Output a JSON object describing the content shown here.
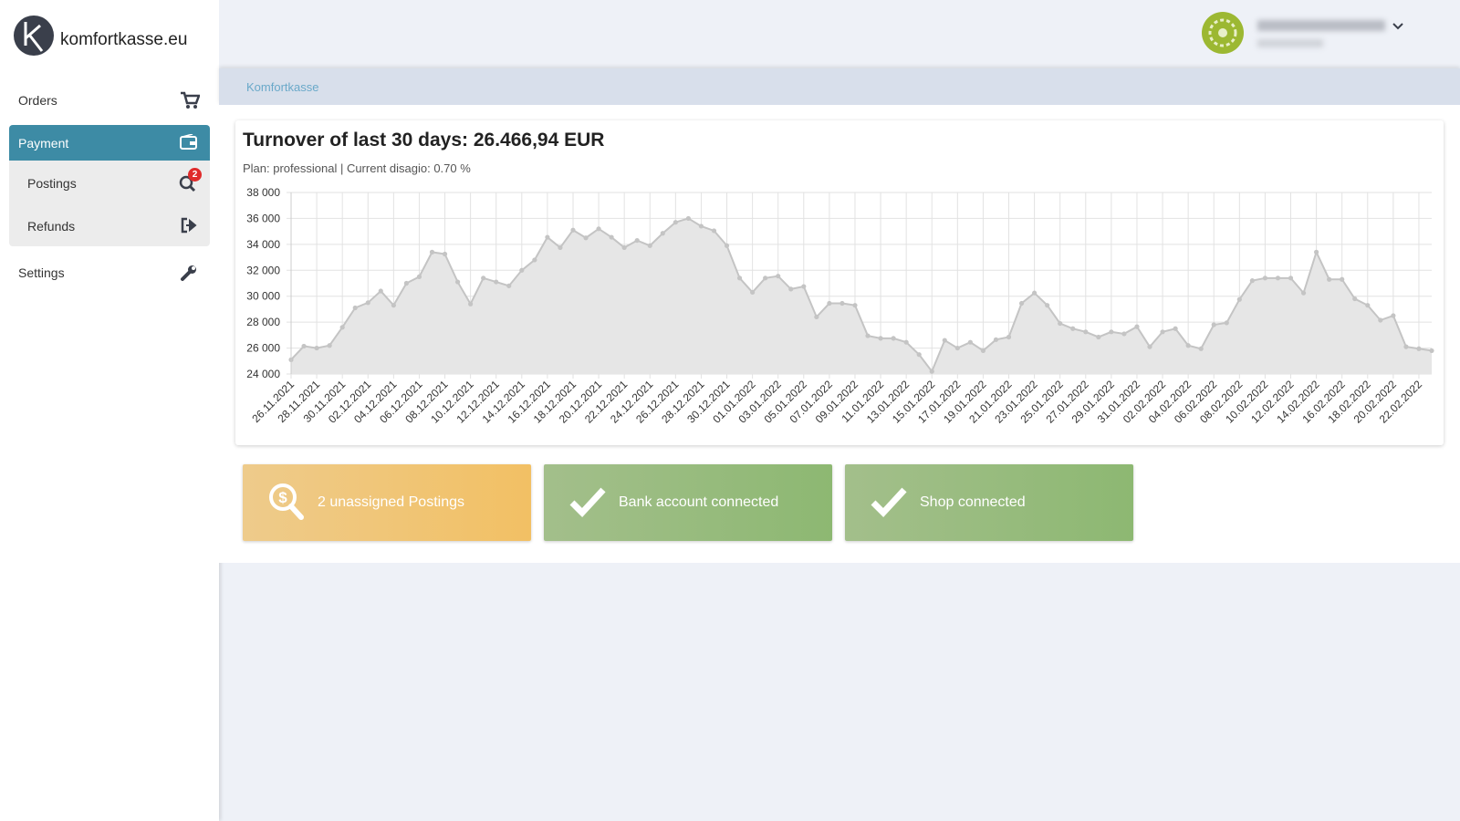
{
  "logo": "komfortkasse.eu",
  "nav": {
    "orders": "Orders",
    "payment": "Payment",
    "postings": "Postings",
    "postings_badge": 2,
    "refunds": "Refunds",
    "settings": "Settings"
  },
  "breadcrumb": "Komfortkasse",
  "tiles": [
    "2 unassigned Postings",
    "Bank account connected",
    "Shop connected"
  ],
  "chart_data": {
    "type": "line",
    "title": "Turnover of last 30 days: 26.466,94 EUR",
    "subtitle": "Plan: professional | Current disagio: 0.70 %",
    "categories": [
      "26.11.2021",
      null,
      "28.11.2021",
      null,
      "30.11.2021",
      null,
      "02.12.2021",
      null,
      "04.12.2021",
      null,
      "06.12.2021",
      null,
      "08.12.2021",
      null,
      "10.12.2021",
      null,
      "12.12.2021",
      null,
      "14.12.2021",
      null,
      "16.12.2021",
      null,
      "18.12.2021",
      null,
      "20.12.2021",
      null,
      "22.12.2021",
      null,
      "24.12.2021",
      null,
      "26.12.2021",
      null,
      "28.12.2021",
      null,
      "30.12.2021",
      null,
      "01.01.2022",
      null,
      "03.01.2022",
      null,
      "05.01.2022",
      null,
      "07.01.2022",
      null,
      "09.01.2022",
      null,
      "11.01.2022",
      null,
      "13.01.2022",
      null,
      "15.01.2022",
      null,
      "17.01.2022",
      null,
      "19.01.2022",
      null,
      "21.01.2022",
      null,
      "23.01.2022",
      null,
      "25.01.2022",
      null,
      "27.01.2022",
      null,
      "29.01.2022",
      null,
      "31.01.2022",
      null,
      "02.02.2022",
      null,
      "04.02.2022",
      null,
      "06.02.2022",
      null,
      "08.02.2022",
      null,
      "10.02.2022",
      null,
      "12.02.2022",
      null,
      "14.02.2022",
      null,
      "16.02.2022",
      null,
      "18.02.2022",
      null,
      "20.02.2022",
      null,
      "22.02.2022",
      null
    ],
    "values": [
      25100,
      26150,
      26000,
      26200,
      27600,
      29100,
      29500,
      30400,
      29300,
      31000,
      31500,
      33400,
      33250,
      31100,
      29400,
      31400,
      31100,
      30800,
      32000,
      32800,
      34550,
      33750,
      35100,
      34500,
      35200,
      34550,
      33750,
      34300,
      33900,
      34850,
      35700,
      36000,
      35400,
      35050,
      33900,
      31400,
      30300,
      31400,
      31550,
      30550,
      30750,
      28400,
      29450,
      29450,
      29300,
      26950,
      26750,
      26750,
      26450,
      25500,
      24200,
      26600,
      26000,
      26450,
      25800,
      26650,
      26850,
      29450,
      30250,
      29300,
      27900,
      27500,
      27250,
      26850,
      27250,
      27100,
      27650,
      26100,
      27250,
      27500,
      26200,
      25950,
      27800,
      27950,
      29750,
      31200,
      31400,
      31400,
      31400,
      30250,
      33400,
      31300,
      31300,
      29800,
      29300,
      28150,
      28500,
      26100,
      25950,
      25800
    ],
    "color": "#c4c4c4",
    "fill": "#e6e6e6",
    "ylim": [
      24000,
      38000
    ],
    "yticks": [
      {
        "value": 24000,
        "label": "24 000"
      },
      {
        "value": 26000,
        "label": "26 000"
      },
      {
        "value": 28000,
        "label": "28 000"
      },
      {
        "value": 30000,
        "label": "30 000"
      },
      {
        "value": 32000,
        "label": "32 000"
      },
      {
        "value": 34000,
        "label": "34 000"
      },
      {
        "value": 36000,
        "label": "36 000"
      },
      {
        "value": 38000,
        "label": "38 000"
      }
    ],
    "grid": true
  }
}
